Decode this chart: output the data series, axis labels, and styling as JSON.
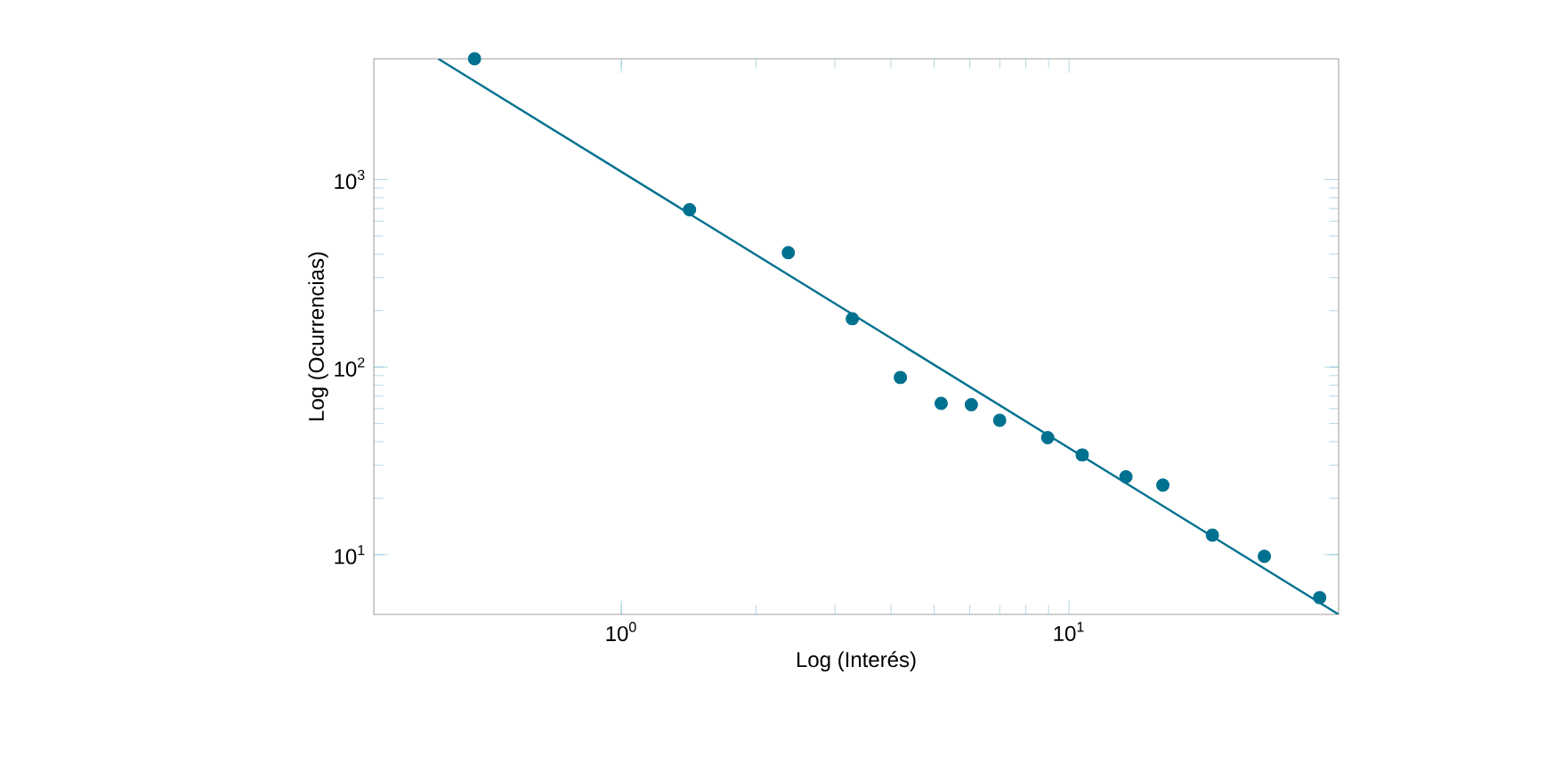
{
  "chart_data": {
    "type": "scatter",
    "xlabel": "Log (Interés)",
    "ylabel": "Log (Ocurrencias)",
    "log": "xy",
    "xlim": [
      0.28,
      40
    ],
    "ylim": [
      4.8,
      4400
    ],
    "xticks": [
      {
        "value": 1,
        "label": "10$^{0}$"
      },
      {
        "value": 10,
        "label": "10$^{1}$"
      }
    ],
    "yticks": [
      {
        "value": 10,
        "label": "10$^{1}$"
      },
      {
        "value": 100,
        "label": "10$^{2}$"
      },
      {
        "value": 1000,
        "label": "10$^{3}$"
      }
    ],
    "series": [
      {
        "color": "#00718f",
        "marker": "circle",
        "x": [
          0.47,
          1.42,
          2.36,
          3.28,
          4.2,
          5.18,
          6.05,
          7.0,
          8.96,
          10.7,
          13.4,
          16.2,
          20.9,
          27.3,
          36.3
        ],
        "values": [
          4400,
          690,
          407,
          181,
          88,
          64,
          63,
          52,
          42,
          34,
          26,
          23.5,
          12.7,
          9.8,
          5.9
        ]
      },
      {
        "type": "line",
        "color": "#00718f",
        "line_style": "solid",
        "marker": "none",
        "x": [
          0.39,
          40
        ],
        "values": [
          4400,
          4.8
        ]
      }
    ]
  }
}
